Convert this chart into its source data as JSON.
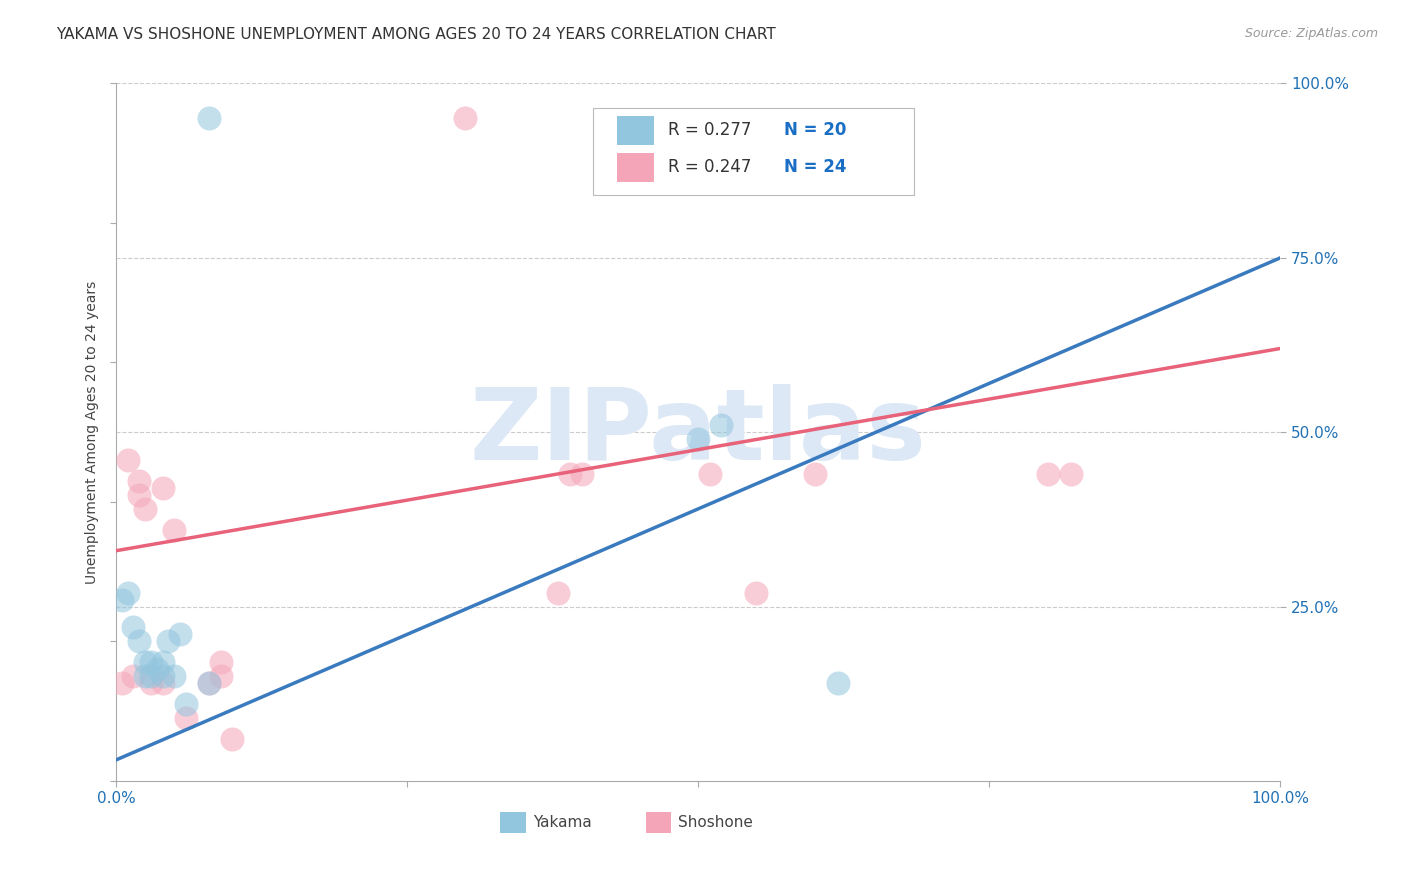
{
  "title": "YAKAMA VS SHOSHONE UNEMPLOYMENT AMONG AGES 20 TO 24 YEARS CORRELATION CHART",
  "source": "Source: ZipAtlas.com",
  "ylabel": "Unemployment Among Ages 20 to 24 years",
  "xlim": [
    0,
    1
  ],
  "ylim": [
    0,
    1
  ],
  "yakama_color": "#92c5de",
  "shoshone_color": "#f4a5b8",
  "yakama_line_color": "#3a7abf",
  "shoshone_line_color": "#e8627a",
  "R_yakama": 0.277,
  "N_yakama": 20,
  "R_shoshone": 0.247,
  "N_shoshone": 24,
  "yakama_intercept": 0.03,
  "yakama_slope": 0.72,
  "shoshone_intercept": 0.33,
  "shoshone_slope": 0.29,
  "yakama_points_x": [
    0.005,
    0.01,
    0.015,
    0.02,
    0.025,
    0.025,
    0.03,
    0.03,
    0.035,
    0.04,
    0.04,
    0.045,
    0.05,
    0.055,
    0.06,
    0.08,
    0.08,
    0.5,
    0.52,
    0.62
  ],
  "yakama_points_y": [
    0.26,
    0.27,
    0.22,
    0.2,
    0.17,
    0.15,
    0.15,
    0.17,
    0.16,
    0.17,
    0.15,
    0.2,
    0.15,
    0.21,
    0.11,
    0.14,
    0.95,
    0.49,
    0.51,
    0.14
  ],
  "shoshone_points_x": [
    0.005,
    0.01,
    0.015,
    0.02,
    0.02,
    0.025,
    0.03,
    0.04,
    0.04,
    0.05,
    0.06,
    0.08,
    0.09,
    0.09,
    0.1,
    0.3,
    0.38,
    0.39,
    0.4,
    0.51,
    0.55,
    0.6,
    0.8,
    0.82
  ],
  "shoshone_points_y": [
    0.14,
    0.46,
    0.15,
    0.43,
    0.41,
    0.39,
    0.14,
    0.42,
    0.14,
    0.36,
    0.09,
    0.14,
    0.17,
    0.15,
    0.06,
    0.95,
    0.27,
    0.44,
    0.44,
    0.44,
    0.27,
    0.44,
    0.44,
    0.44
  ],
  "background_color": "#ffffff",
  "grid_color": "#cccccc",
  "watermark_text": "ZIPatlas",
  "watermark_color": "#dce8f5",
  "legend_text_color": "#1a6fc4",
  "title_fontsize": 11,
  "axis_label_fontsize": 10,
  "tick_fontsize": 11
}
